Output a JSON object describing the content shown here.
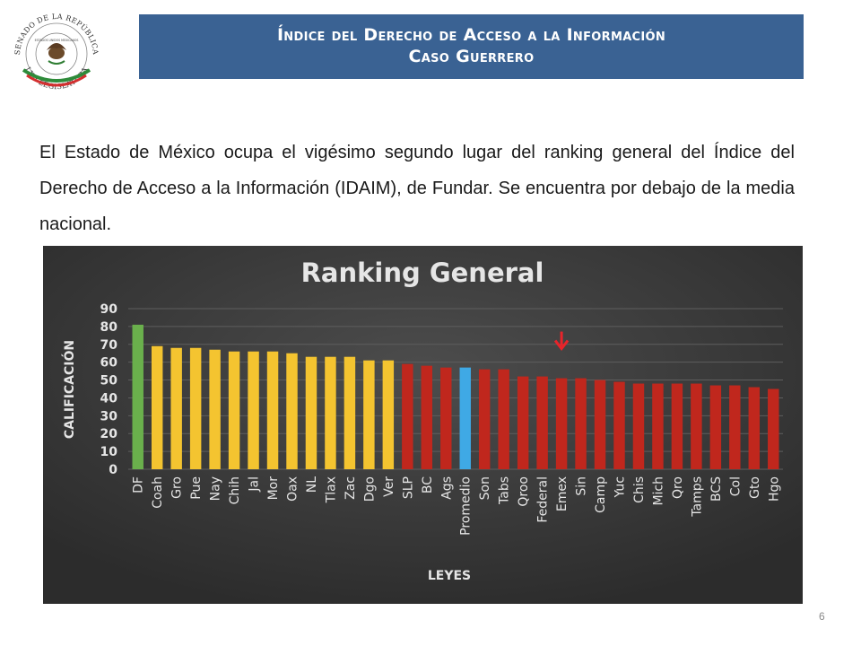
{
  "header": {
    "title_line1": "Índice del Derecho de Acceso a la Información",
    "title_line2": "Caso Guerrero"
  },
  "logo": {
    "text_top": "SENADO DE LA REPÚBLICA",
    "text_bottom": "LXII LEGISLATURA",
    "seal_text": "ESTADOS UNIDOS MEXICANOS"
  },
  "body": {
    "paragraph": "El Estado de México ocupa el vigésimo segundo lugar del ranking general del Índice del Derecho de Acceso a la Información (IDAIM), de Fundar. Se encuentra por debajo de la media nacional."
  },
  "page_number": "6",
  "chart_data": {
    "type": "bar",
    "title": "Ranking General",
    "xlabel": "LEYES",
    "ylabel": "CALIFICACIÓN",
    "ylim": [
      0,
      90
    ],
    "yticks": [
      0,
      10,
      20,
      30,
      40,
      50,
      60,
      70,
      80,
      90
    ],
    "grid": true,
    "categories": [
      "DF",
      "Coah",
      "Gro",
      "Pue",
      "Nay",
      "Chih",
      "Jal",
      "Mor",
      "Oax",
      "NL",
      "Tlax",
      "Zac",
      "Dgo",
      "Ver",
      "SLP",
      "BC",
      "Ags",
      "Promedio",
      "Son",
      "Tabs",
      "Qroo",
      "Federal",
      "Emex",
      "Sin",
      "Camp",
      "Yuc",
      "Chis",
      "Mich",
      "Qro",
      "Tamps",
      "BCS",
      "Col",
      "Gto",
      "Hgo"
    ],
    "values": [
      81,
      69,
      68,
      68,
      67,
      66,
      66,
      66,
      65,
      63,
      63,
      63,
      61,
      61,
      59,
      58,
      57,
      57,
      56,
      56,
      52,
      52,
      51,
      51,
      50,
      49,
      48,
      48,
      48,
      48,
      47,
      47,
      46,
      45
    ],
    "bar_colors": [
      "#6ab04c",
      "#f4c430",
      "#f4c430",
      "#f4c430",
      "#f4c430",
      "#f4c430",
      "#f4c430",
      "#f4c430",
      "#f4c430",
      "#f4c430",
      "#f4c430",
      "#f4c430",
      "#f4c430",
      "#f4c430",
      "#c0271d",
      "#c0271d",
      "#c0271d",
      "#3fa9e5",
      "#c0271d",
      "#c0271d",
      "#c0271d",
      "#c0271d",
      "#c0271d",
      "#c0271d",
      "#c0271d",
      "#c0271d",
      "#c0271d",
      "#c0271d",
      "#c0271d",
      "#c0271d",
      "#c0271d",
      "#c0271d",
      "#c0271d",
      "#c0271d"
    ],
    "highlight_category": "Emex",
    "highlight_marker": "down-arrow",
    "highlight_color": "#e8242a",
    "background_color": "#3c3c3c"
  }
}
